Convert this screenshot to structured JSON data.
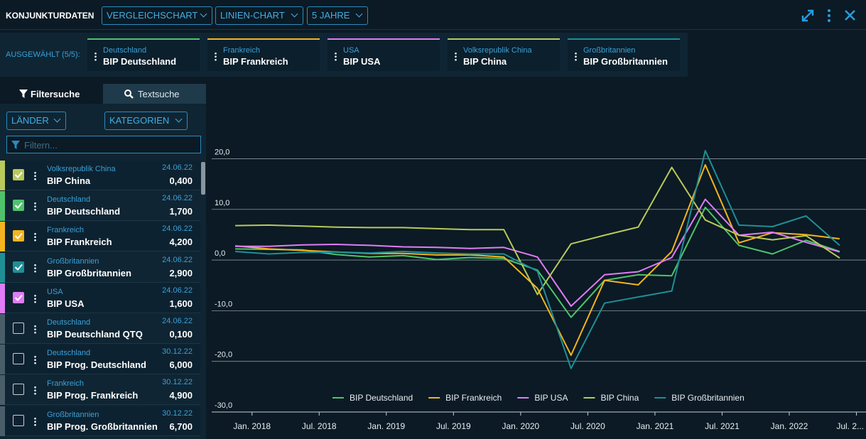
{
  "header": {
    "title": "KONJUNKTURDATEN",
    "dropdowns": [
      "VERGLEICHSCHART",
      "LINIEN-CHART",
      "5 JAHRE"
    ]
  },
  "selection": {
    "label": "AUSGEWÄHLT (5/5):",
    "items": [
      {
        "country": "Deutschland",
        "name": "BIP Deutschland",
        "color": "#4fc36b"
      },
      {
        "country": "Frankreich",
        "name": "BIP Frankreich",
        "color": "#f5b41f"
      },
      {
        "country": "USA",
        "name": "BIP USA",
        "color": "#e07cf6"
      },
      {
        "country": "Volksrepublik China",
        "name": "BIP China",
        "color": "#b9c95a"
      },
      {
        "country": "Großbritannien",
        "name": "BIP Großbritannien",
        "color": "#1f8f95"
      }
    ]
  },
  "sidebar": {
    "tabs": [
      "Filtersuche",
      "Textsuche"
    ],
    "filters": [
      "LÄNDER",
      "KATEGORIEN"
    ],
    "search_placeholder": "Filtern...",
    "items": [
      {
        "country": "Volksrepublik China",
        "date": "24.06.22",
        "name": "BIP China",
        "value": "0,400",
        "checked": true,
        "color": "#b9c95a"
      },
      {
        "country": "Deutschland",
        "date": "24.06.22",
        "name": "BIP Deutschland",
        "value": "1,700",
        "checked": true,
        "color": "#4fc36b"
      },
      {
        "country": "Frankreich",
        "date": "24.06.22",
        "name": "BIP Frankreich",
        "value": "4,200",
        "checked": true,
        "color": "#f5b41f"
      },
      {
        "country": "Großbritannien",
        "date": "24.06.22",
        "name": "BIP Großbritannien",
        "value": "2,900",
        "checked": true,
        "color": "#1f8f95"
      },
      {
        "country": "USA",
        "date": "24.06.22",
        "name": "BIP USA",
        "value": "1,600",
        "checked": true,
        "color": "#e07cf6"
      },
      {
        "country": "Deutschland",
        "date": "24.06.22",
        "name": "BIP Deutschland QTQ",
        "value": "0,100",
        "checked": false,
        "color": "#4a5e6a"
      },
      {
        "country": "Deutschland",
        "date": "30.12.22",
        "name": "BIP Prog. Deutschland",
        "value": "6,000",
        "checked": false,
        "color": "#4a5e6a"
      },
      {
        "country": "Frankreich",
        "date": "30.12.22",
        "name": "BIP Prog. Frankreich",
        "value": "4,900",
        "checked": false,
        "color": "#4a5e6a"
      },
      {
        "country": "Großbritannien",
        "date": "30.12.22",
        "name": "BIP Prog. Großbritannien",
        "value": "6,700",
        "checked": false,
        "color": "#4a5e6a"
      }
    ]
  },
  "chart_data": {
    "type": "line",
    "grid": true,
    "legend": "bottom",
    "x": [
      2017.875,
      2018.125,
      2018.375,
      2018.625,
      2018.875,
      2019.125,
      2019.375,
      2019.625,
      2019.875,
      2020.125,
      2020.375,
      2020.625,
      2020.875,
      2021.125,
      2021.375,
      2021.625,
      2021.875,
      2022.125,
      2022.375
    ],
    "xlim": [
      2017.7,
      2022.55
    ],
    "xticks": [
      {
        "value": 2018,
        "label": "Jan. 2018"
      },
      {
        "value": 2018.5,
        "label": "Jul. 2018"
      },
      {
        "value": 2019,
        "label": "Jan. 2019"
      },
      {
        "value": 2019.5,
        "label": "Jul. 2019"
      },
      {
        "value": 2020,
        "label": "Jan. 2020"
      },
      {
        "value": 2020.5,
        "label": "Jul. 2020"
      },
      {
        "value": 2021,
        "label": "Jan. 2021"
      },
      {
        "value": 2021.5,
        "label": "Jul. 2021"
      },
      {
        "value": 2022,
        "label": "Jan. 2022"
      },
      {
        "value": 2022.5,
        "label": "Jul. 2..."
      }
    ],
    "ylim": [
      -30,
      35
    ],
    "yticks": [
      {
        "value": -30,
        "label": "-30,0"
      },
      {
        "value": -20,
        "label": "-20,0"
      },
      {
        "value": -10,
        "label": "-10,0"
      },
      {
        "value": 0,
        "label": "0,0"
      },
      {
        "value": 10,
        "label": "10,0"
      },
      {
        "value": 20,
        "label": "20,0"
      }
    ],
    "series": [
      {
        "name": "BIP Deutschland",
        "color": "#4fc36b",
        "values": [
          2.2,
          2.1,
          2.0,
          1.1,
          0.6,
          0.9,
          0.1,
          0.5,
          0.3,
          -2.0,
          -11.3,
          -4.0,
          -2.9,
          -3.1,
          10.4,
          2.9,
          1.2,
          3.9,
          1.7
        ]
      },
      {
        "name": "BIP Frankreich",
        "color": "#f5b41f",
        "values": [
          2.8,
          2.2,
          1.9,
          1.6,
          1.3,
          1.3,
          1.0,
          1.0,
          0.6,
          -5.6,
          -18.8,
          -4.0,
          -4.9,
          1.7,
          18.8,
          3.4,
          5.4,
          5.0,
          4.2
        ]
      },
      {
        "name": "BIP USA",
        "color": "#e07cf6",
        "values": [
          2.7,
          2.7,
          3.0,
          3.1,
          2.9,
          2.6,
          2.5,
          2.3,
          2.5,
          0.6,
          -9.1,
          -2.9,
          -2.3,
          0.5,
          12.0,
          4.9,
          5.5,
          3.5,
          1.6
        ]
      },
      {
        "name": "BIP China",
        "color": "#b9c95a",
        "values": [
          6.8,
          6.9,
          6.7,
          6.5,
          6.4,
          6.4,
          6.2,
          6.0,
          6.0,
          -6.8,
          3.2,
          4.9,
          6.5,
          18.3,
          7.9,
          4.9,
          4.0,
          4.8,
          0.4
        ]
      },
      {
        "name": "BIP Großbritannien",
        "color": "#1f8f95",
        "values": [
          1.7,
          1.2,
          1.5,
          1.6,
          1.4,
          1.7,
          1.4,
          1.2,
          1.2,
          -2.2,
          -21.4,
          -8.5,
          -7.3,
          -6.1,
          21.6,
          6.9,
          6.6,
          8.7,
          2.9
        ]
      }
    ]
  }
}
